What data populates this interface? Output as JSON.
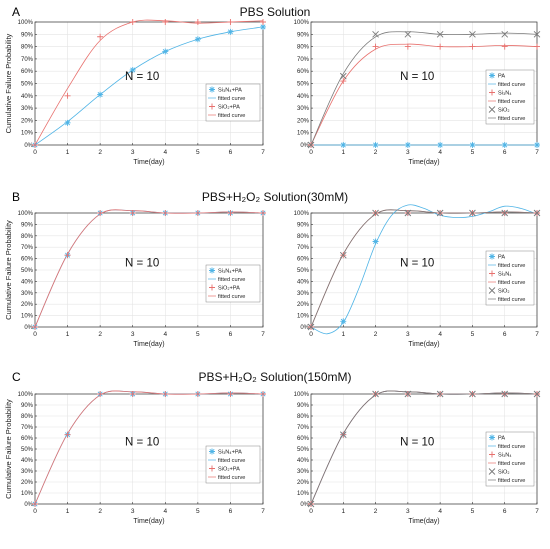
{
  "rows": [
    {
      "letter": "A",
      "title": "PBS Solution"
    },
    {
      "letter": "B",
      "title": "PBS+H₂O₂ Solution(30mM)"
    },
    {
      "letter": "C",
      "title": "PBS+H₂O₂ Solution(150mM)"
    }
  ],
  "colors": {
    "blue": "#4fb4e6",
    "red": "#e8716e",
    "gray": "#7a7a7a"
  },
  "chart_data": [
    {
      "id": "A-left",
      "type": "scatter",
      "title": "",
      "xlabel": "Time(day)",
      "ylabel": "Cumulative Failure Probability",
      "xlim": [
        0,
        7
      ],
      "ylim": [
        0,
        100
      ],
      "y_ticks_pct": true,
      "annotation": "N = 10",
      "x": [
        0,
        1,
        2,
        3,
        4,
        5,
        6,
        7
      ],
      "series": [
        {
          "name": "Si₃N₄+PA",
          "color": "#4fb4e6",
          "marker": "asterisk",
          "values": [
            0,
            18,
            41,
            61,
            76,
            86,
            92,
            96
          ],
          "fit": [
            [
              0,
              0
            ],
            [
              1,
              19
            ],
            [
              2,
              41
            ],
            [
              3,
              61
            ],
            [
              4,
              76
            ],
            [
              5,
              86
            ],
            [
              6,
              92
            ],
            [
              7,
              96
            ]
          ]
        },
        {
          "name": "SiO₂+PA",
          "color": "#e8716e",
          "marker": "plus",
          "values": [
            0,
            40,
            88,
            100,
            100,
            100,
            100,
            100
          ],
          "fit": [
            [
              0,
              0
            ],
            [
              1,
              46
            ],
            [
              2,
              85
            ],
            [
              3,
              100
            ],
            [
              4,
              101
            ],
            [
              5,
              99
            ],
            [
              6,
              100
            ],
            [
              7,
              101
            ]
          ]
        }
      ],
      "legend": [
        "Si₃N₄+PA",
        "fitted curve",
        "SiO₂+PA",
        "fitted curve"
      ]
    },
    {
      "id": "A-right",
      "type": "scatter",
      "title": "",
      "xlabel": "Time(day)",
      "ylabel": "",
      "xlim": [
        0,
        7
      ],
      "ylim": [
        0,
        100
      ],
      "y_ticks_pct": true,
      "annotation": "N = 10",
      "x": [
        0,
        1,
        2,
        3,
        4,
        5,
        6,
        7
      ],
      "series": [
        {
          "name": "PA",
          "color": "#4fb4e6",
          "marker": "asterisk",
          "values": [
            0,
            0,
            0,
            0,
            0,
            0,
            0,
            0
          ],
          "fit": [
            [
              0,
              0
            ],
            [
              7,
              0
            ]
          ]
        },
        {
          "name": "Si₃N₄",
          "color": "#e8716e",
          "marker": "plus",
          "values": [
            0,
            52,
            80,
            80,
            80,
            80,
            80,
            80
          ],
          "fit": [
            [
              0,
              0
            ],
            [
              1,
              52
            ],
            [
              2,
              78
            ],
            [
              3,
              82
            ],
            [
              4,
              80
            ],
            [
              5,
              80
            ],
            [
              6,
              81
            ],
            [
              7,
              80
            ]
          ]
        },
        {
          "name": "SiO₂",
          "color": "#7a7a7a",
          "marker": "cross",
          "values": [
            0,
            56,
            90,
            90,
            90,
            90,
            90,
            90
          ],
          "fit": [
            [
              0,
              0
            ],
            [
              1,
              58
            ],
            [
              2,
              88
            ],
            [
              3,
              92
            ],
            [
              4,
              90
            ],
            [
              5,
              90
            ],
            [
              6,
              91
            ],
            [
              7,
              90
            ]
          ]
        }
      ],
      "legend": [
        "PA",
        "fitted curve",
        "Si₃N₄",
        "fitted curve",
        "SiO₂",
        "fitted curve"
      ]
    },
    {
      "id": "B-left",
      "type": "scatter",
      "title": "",
      "xlabel": "Time(day)",
      "ylabel": "Cumulative Failure Probability",
      "xlim": [
        0,
        7
      ],
      "ylim": [
        0,
        100
      ],
      "y_ticks_pct": true,
      "annotation": "N = 10",
      "x": [
        0,
        1,
        2,
        3,
        4,
        5,
        6,
        7
      ],
      "series": [
        {
          "name": "Si₃N₄+PA",
          "color": "#4fb4e6",
          "marker": "asterisk",
          "values": [
            0,
            63,
            100,
            100,
            100,
            100,
            100,
            100
          ],
          "fit": [
            [
              0,
              0
            ],
            [
              1,
              64
            ],
            [
              2,
              99
            ],
            [
              3,
              102
            ],
            [
              4,
              100
            ],
            [
              5,
              100
            ],
            [
              6,
              101
            ],
            [
              7,
              100
            ]
          ]
        },
        {
          "name": "SiO₂+PA",
          "color": "#e8716e",
          "marker": "plus",
          "values": [
            0,
            63,
            100,
            100,
            100,
            100,
            100,
            100
          ],
          "fit": [
            [
              0,
              0
            ],
            [
              1,
              64
            ],
            [
              2,
              99
            ],
            [
              3,
              102
            ],
            [
              4,
              100
            ],
            [
              5,
              100
            ],
            [
              6,
              101
            ],
            [
              7,
              100
            ]
          ]
        }
      ],
      "legend": [
        "Si₃N₄+PA",
        "fitted curve",
        "SiO₂+PA",
        "fitted curve"
      ]
    },
    {
      "id": "B-right",
      "type": "scatter",
      "title": "",
      "xlabel": "Time(day)",
      "ylabel": "",
      "xlim": [
        0,
        7
      ],
      "ylim": [
        0,
        100
      ],
      "y_ticks_pct": true,
      "annotation": "N = 10",
      "x": [
        0,
        1,
        2,
        3,
        4,
        5,
        6,
        7
      ],
      "series": [
        {
          "name": "PA",
          "color": "#4fb4e6",
          "marker": "asterisk",
          "values": [
            0,
            5,
            75,
            100,
            100,
            100,
            100,
            100
          ],
          "fit": [
            [
              0,
              0
            ],
            [
              0.5,
              -6
            ],
            [
              1,
              4
            ],
            [
              1.5,
              35
            ],
            [
              2,
              73
            ],
            [
              2.5,
              98
            ],
            [
              3,
              107
            ],
            [
              3.5,
              104
            ],
            [
              4,
              98
            ],
            [
              4.5,
              96
            ],
            [
              5,
              97
            ],
            [
              5.5,
              101
            ],
            [
              6,
              106
            ],
            [
              6.5,
              104
            ],
            [
              7,
              99
            ]
          ]
        },
        {
          "name": "Si₃N₄",
          "color": "#e8716e",
          "marker": "plus",
          "values": [
            0,
            63,
            100,
            100,
            100,
            100,
            100,
            100
          ],
          "fit": [
            [
              0,
              0
            ],
            [
              1,
              64
            ],
            [
              2,
              99
            ],
            [
              3,
              102
            ],
            [
              4,
              100
            ],
            [
              5,
              100
            ],
            [
              6,
              101
            ],
            [
              7,
              100
            ]
          ]
        },
        {
          "name": "SiO₂",
          "color": "#7a7a7a",
          "marker": "cross",
          "values": [
            0,
            63,
            100,
            100,
            100,
            100,
            100,
            100
          ],
          "fit": [
            [
              0,
              0
            ],
            [
              1,
              64
            ],
            [
              2,
              99
            ],
            [
              3,
              102
            ],
            [
              4,
              100
            ],
            [
              5,
              100
            ],
            [
              6,
              101
            ],
            [
              7,
              100
            ]
          ]
        }
      ],
      "legend": [
        "PA",
        "fitted curve",
        "Si₃N₄",
        "fitted curve",
        "SiO₂",
        "fitted curve"
      ]
    },
    {
      "id": "C-left",
      "type": "scatter",
      "title": "",
      "xlabel": "Time(day)",
      "ylabel": "Cumulative Failure Probability",
      "xlim": [
        0,
        7
      ],
      "ylim": [
        0,
        100
      ],
      "y_ticks_pct": true,
      "annotation": "N = 10",
      "x": [
        0,
        1,
        2,
        3,
        4,
        5,
        6,
        7
      ],
      "series": [
        {
          "name": "Si₃N₄+PA",
          "color": "#4fb4e6",
          "marker": "asterisk",
          "values": [
            0,
            63,
            100,
            100,
            100,
            100,
            100,
            100
          ],
          "fit": [
            [
              0,
              0
            ],
            [
              1,
              64
            ],
            [
              2,
              99
            ],
            [
              3,
              102
            ],
            [
              4,
              100
            ],
            [
              5,
              100
            ],
            [
              6,
              101
            ],
            [
              7,
              100
            ]
          ]
        },
        {
          "name": "SiO₂+PA",
          "color": "#e8716e",
          "marker": "plus",
          "values": [
            0,
            63,
            100,
            100,
            100,
            100,
            100,
            100
          ],
          "fit": [
            [
              0,
              0
            ],
            [
              1,
              64
            ],
            [
              2,
              99
            ],
            [
              3,
              102
            ],
            [
              4,
              100
            ],
            [
              5,
              100
            ],
            [
              6,
              101
            ],
            [
              7,
              100
            ]
          ]
        }
      ],
      "legend": [
        "Si₃N₄+PA",
        "fitted curve",
        "SiO₂+PA",
        "fitted curve"
      ]
    },
    {
      "id": "C-right",
      "type": "scatter",
      "title": "",
      "xlabel": "Time(day)",
      "ylabel": "",
      "xlim": [
        0,
        7
      ],
      "ylim": [
        0,
        100
      ],
      "y_ticks_pct": true,
      "annotation": "N = 10",
      "x": [
        0,
        1,
        2,
        3,
        4,
        5,
        6,
        7
      ],
      "series": [
        {
          "name": "PA",
          "color": "#4fb4e6",
          "marker": "asterisk",
          "values": [
            0,
            63,
            100,
            100,
            100,
            100,
            100,
            100
          ],
          "fit": [
            [
              0,
              0
            ],
            [
              1,
              64
            ],
            [
              2,
              99
            ],
            [
              3,
              102
            ],
            [
              4,
              100
            ],
            [
              5,
              100
            ],
            [
              6,
              101
            ],
            [
              7,
              100
            ]
          ]
        },
        {
          "name": "Si₃N₄",
          "color": "#e8716e",
          "marker": "plus",
          "values": [
            0,
            63,
            100,
            100,
            100,
            100,
            100,
            100
          ],
          "fit": [
            [
              0,
              0
            ],
            [
              1,
              64
            ],
            [
              2,
              99
            ],
            [
              3,
              102
            ],
            [
              4,
              100
            ],
            [
              5,
              100
            ],
            [
              6,
              101
            ],
            [
              7,
              100
            ]
          ]
        },
        {
          "name": "SiO₂",
          "color": "#7a7a7a",
          "marker": "cross",
          "values": [
            0,
            63,
            100,
            100,
            100,
            100,
            100,
            100
          ],
          "fit": [
            [
              0,
              0
            ],
            [
              1,
              64
            ],
            [
              2,
              99
            ],
            [
              3,
              102
            ],
            [
              4,
              100
            ],
            [
              5,
              100
            ],
            [
              6,
              101
            ],
            [
              7,
              100
            ]
          ]
        }
      ],
      "legend": [
        "PA",
        "fitted curve",
        "Si₃N₄",
        "fitted curve",
        "SiO₂",
        "fitted curve"
      ]
    }
  ]
}
